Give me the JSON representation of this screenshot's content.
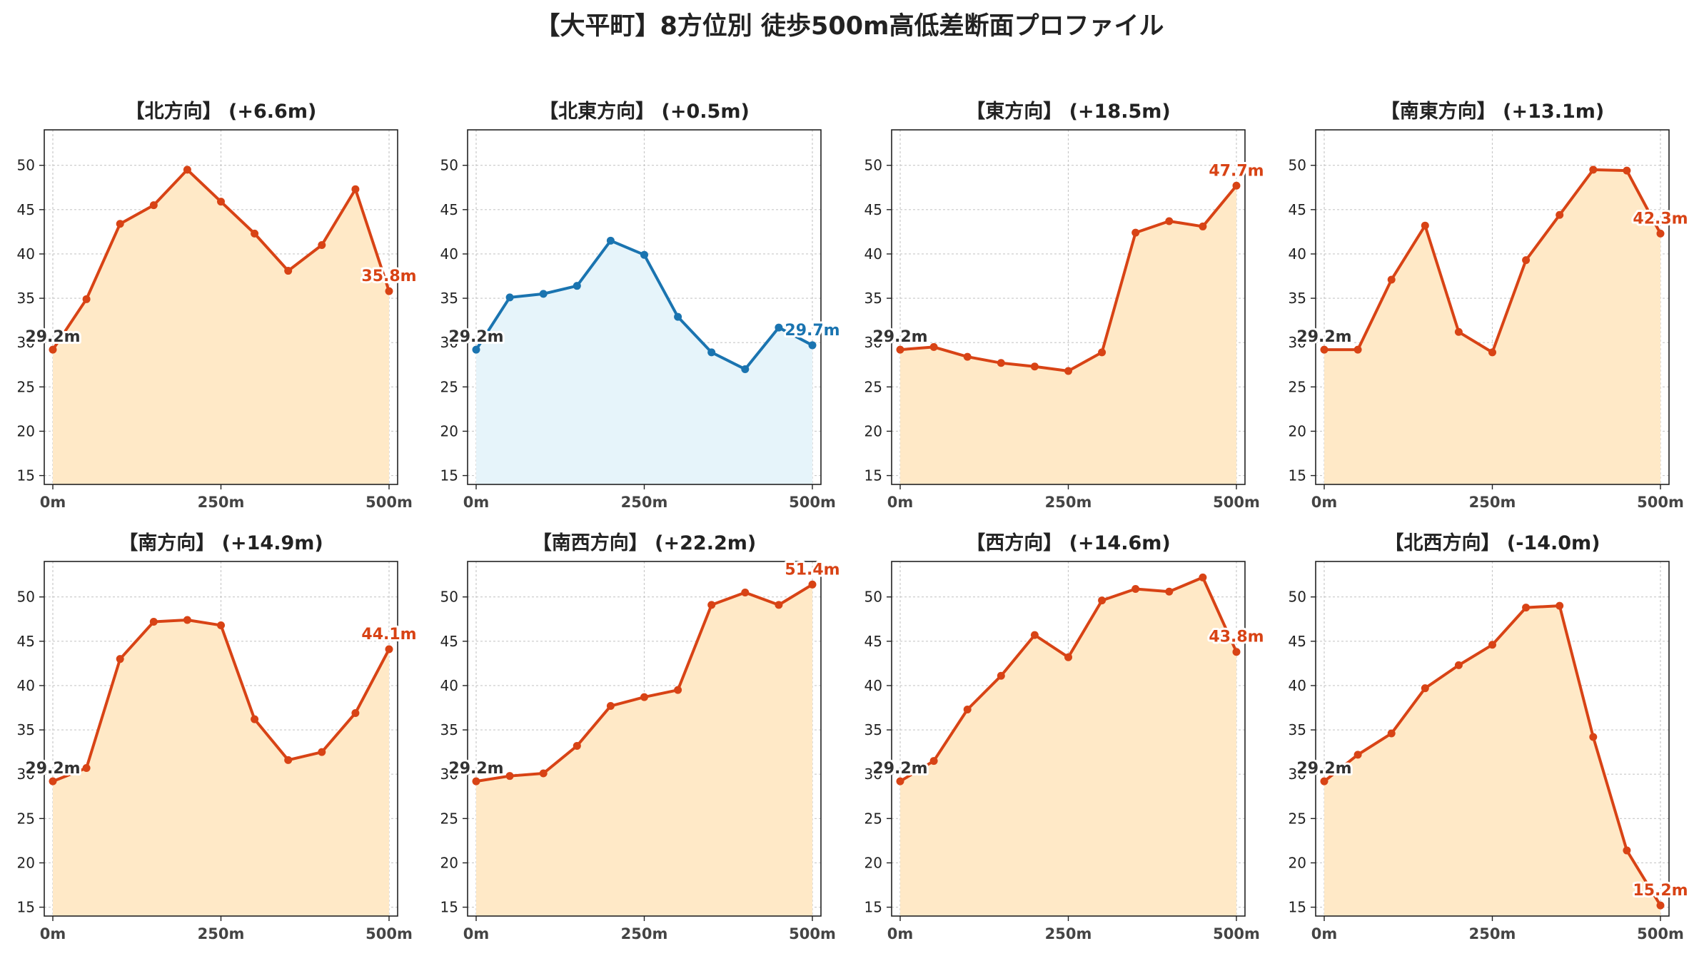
{
  "figure": {
    "title": "【大平町】8方位別 徒歩500m高低差断面プロファイル"
  },
  "colors": {
    "rise_line": "#d84315",
    "rise_fill": "#ffe9c7",
    "flat_line": "#1a74b0",
    "flat_fill": "#e6f4fa",
    "start_label": "#333333"
  },
  "chart_data": [
    {
      "type": "area",
      "title": "【北方向】 (+6.6m)",
      "style": "rise",
      "x": [
        0,
        50,
        100,
        150,
        200,
        250,
        300,
        350,
        400,
        450,
        500
      ],
      "y": [
        29.2,
        34.9,
        43.4,
        45.5,
        49.5,
        45.9,
        42.3,
        38.1,
        41.0,
        47.3,
        35.8
      ],
      "x_ticks": [
        "0m",
        "250m",
        "500m"
      ],
      "start_label": "29.2m",
      "end_label": "35.8m",
      "ylim": [
        14,
        54
      ],
      "yticks": [
        15,
        20,
        25,
        30,
        35,
        40,
        45,
        50
      ],
      "grid": true
    },
    {
      "type": "area",
      "title": "【北東方向】 (+0.5m)",
      "style": "flat",
      "x": [
        0,
        50,
        100,
        150,
        200,
        250,
        300,
        350,
        400,
        450,
        500
      ],
      "y": [
        29.2,
        35.1,
        35.5,
        36.4,
        41.5,
        39.9,
        32.9,
        28.9,
        27.0,
        31.7,
        29.7
      ],
      "x_ticks": [
        "0m",
        "250m",
        "500m"
      ],
      "start_label": "29.2m",
      "end_label": "29.7m",
      "ylim": [
        14,
        54
      ],
      "yticks": [
        15,
        20,
        25,
        30,
        35,
        40,
        45,
        50
      ],
      "grid": true
    },
    {
      "type": "area",
      "title": "【東方向】 (+18.5m)",
      "style": "rise",
      "x": [
        0,
        50,
        100,
        150,
        200,
        250,
        300,
        350,
        400,
        450,
        500
      ],
      "y": [
        29.2,
        29.5,
        28.4,
        27.7,
        27.3,
        26.8,
        28.9,
        42.4,
        43.7,
        43.1,
        47.7
      ],
      "x_ticks": [
        "0m",
        "250m",
        "500m"
      ],
      "start_label": "29.2m",
      "end_label": "47.7m",
      "ylim": [
        14,
        54
      ],
      "yticks": [
        15,
        20,
        25,
        30,
        35,
        40,
        45,
        50
      ],
      "grid": true
    },
    {
      "type": "area",
      "title": "【南東方向】 (+13.1m)",
      "style": "rise",
      "x": [
        0,
        50,
        100,
        150,
        200,
        250,
        300,
        350,
        400,
        450,
        500
      ],
      "y": [
        29.2,
        29.2,
        37.1,
        43.2,
        31.2,
        28.9,
        39.3,
        44.4,
        49.5,
        49.4,
        42.3
      ],
      "x_ticks": [
        "0m",
        "250m",
        "500m"
      ],
      "start_label": "29.2m",
      "end_label": "42.3m",
      "ylim": [
        14,
        54
      ],
      "yticks": [
        15,
        20,
        25,
        30,
        35,
        40,
        45,
        50
      ],
      "grid": true
    },
    {
      "type": "area",
      "title": "【南方向】 (+14.9m)",
      "style": "rise",
      "x": [
        0,
        50,
        100,
        150,
        200,
        250,
        300,
        350,
        400,
        450,
        500
      ],
      "y": [
        29.2,
        30.7,
        43.0,
        47.2,
        47.4,
        46.8,
        36.2,
        31.6,
        32.5,
        36.9,
        44.1
      ],
      "x_ticks": [
        "0m",
        "250m",
        "500m"
      ],
      "start_label": "29.2m",
      "end_label": "44.1m",
      "ylim": [
        14,
        54
      ],
      "yticks": [
        15,
        20,
        25,
        30,
        35,
        40,
        45,
        50
      ],
      "grid": true
    },
    {
      "type": "area",
      "title": "【南西方向】 (+22.2m)",
      "style": "rise",
      "x": [
        0,
        50,
        100,
        150,
        200,
        250,
        300,
        350,
        400,
        450,
        500
      ],
      "y": [
        29.2,
        29.8,
        30.1,
        33.2,
        37.7,
        38.7,
        39.5,
        49.1,
        50.5,
        49.1,
        51.4
      ],
      "x_ticks": [
        "0m",
        "250m",
        "500m"
      ],
      "start_label": "29.2m",
      "end_label": "51.4m",
      "ylim": [
        14,
        54
      ],
      "yticks": [
        15,
        20,
        25,
        30,
        35,
        40,
        45,
        50
      ],
      "grid": true
    },
    {
      "type": "area",
      "title": "【西方向】 (+14.6m)",
      "style": "rise",
      "x": [
        0,
        50,
        100,
        150,
        200,
        250,
        300,
        350,
        400,
        450,
        500
      ],
      "y": [
        29.2,
        31.5,
        37.3,
        41.1,
        45.7,
        43.2,
        49.6,
        50.9,
        50.6,
        52.2,
        43.8
      ],
      "x_ticks": [
        "0m",
        "250m",
        "500m"
      ],
      "start_label": "29.2m",
      "end_label": "43.8m",
      "ylim": [
        14,
        54
      ],
      "yticks": [
        15,
        20,
        25,
        30,
        35,
        40,
        45,
        50
      ],
      "grid": true
    },
    {
      "type": "area",
      "title": "【北西方向】 (-14.0m)",
      "style": "rise",
      "x": [
        0,
        50,
        100,
        150,
        200,
        250,
        300,
        350,
        400,
        450,
        500
      ],
      "y": [
        29.2,
        32.2,
        34.6,
        39.7,
        42.3,
        44.6,
        48.8,
        49.0,
        34.2,
        21.4,
        15.2
      ],
      "x_ticks": [
        "0m",
        "250m",
        "500m"
      ],
      "start_label": "29.2m",
      "end_label": "15.2m",
      "ylim": [
        14,
        54
      ],
      "yticks": [
        15,
        20,
        25,
        30,
        35,
        40,
        45,
        50
      ],
      "grid": true
    }
  ]
}
